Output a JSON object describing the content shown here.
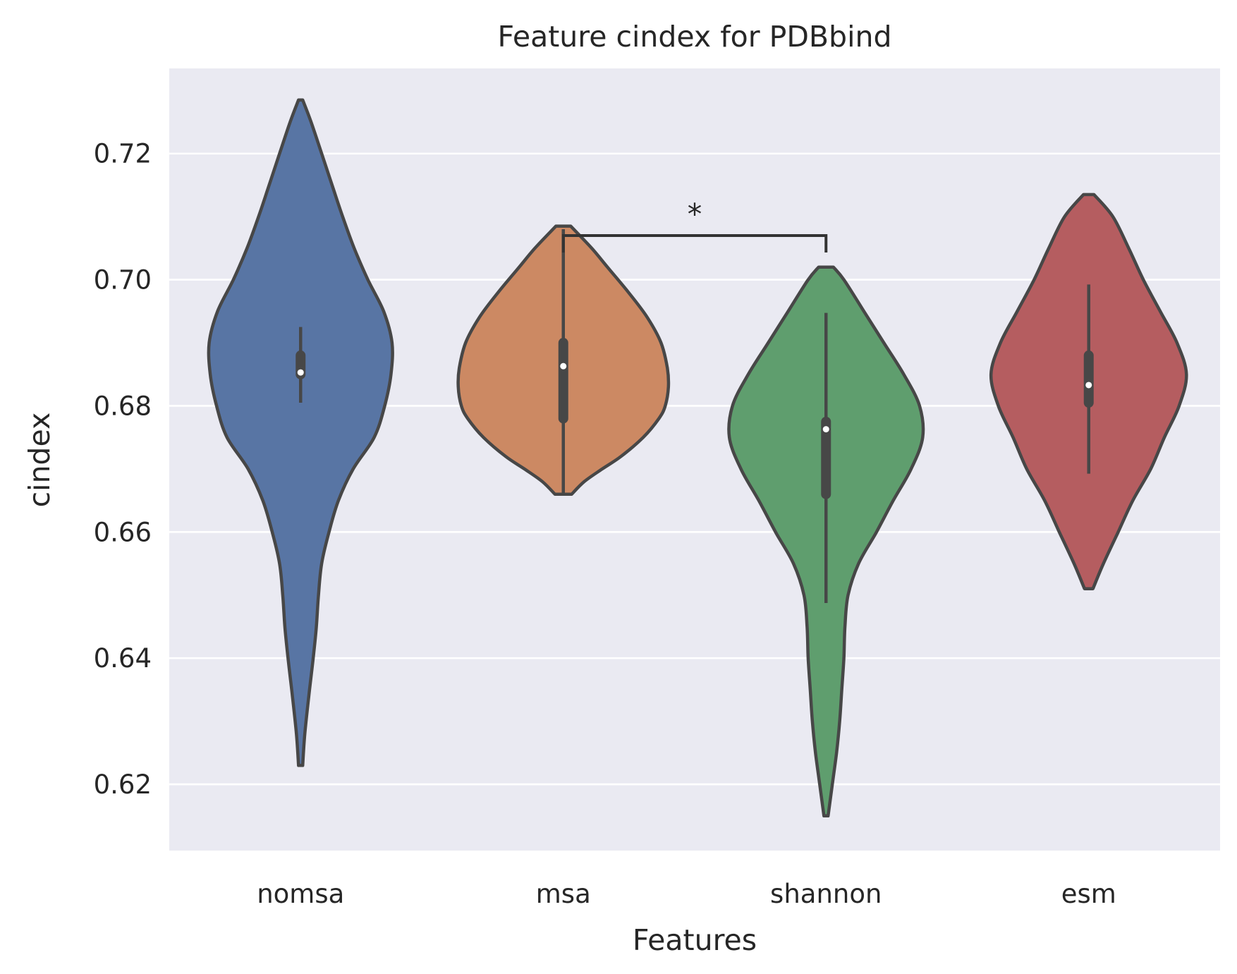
{
  "chart_data": {
    "type": "violin",
    "title": "Feature cindex for PDBbind",
    "xlabel": "Features",
    "ylabel": "cindex",
    "ylim": [
      0.6095,
      0.7335
    ],
    "yticks": [
      0.62,
      0.64,
      0.66,
      0.68,
      0.7,
      0.72
    ],
    "ytick_labels": [
      "0.62",
      "0.64",
      "0.66",
      "0.68",
      "0.70",
      "0.72"
    ],
    "grid": true,
    "categories": [
      "nomsa",
      "msa",
      "shannon",
      "esm"
    ],
    "colors": [
      "#5875a4",
      "#cc8963",
      "#5f9e6e",
      "#b55d60"
    ],
    "violins": [
      {
        "name": "nomsa",
        "min": 0.623,
        "max": 0.7285,
        "median": 0.6853,
        "q1": 0.685,
        "q3": 0.688,
        "profile": [
          [
            0.623,
            0.02
          ],
          [
            0.628,
            0.04
          ],
          [
            0.635,
            0.085
          ],
          [
            0.64,
            0.12
          ],
          [
            0.645,
            0.15
          ],
          [
            0.65,
            0.17
          ],
          [
            0.655,
            0.2
          ],
          [
            0.66,
            0.27
          ],
          [
            0.665,
            0.36
          ],
          [
            0.67,
            0.5
          ],
          [
            0.675,
            0.7
          ],
          [
            0.68,
            0.8
          ],
          [
            0.685,
            0.86
          ],
          [
            0.69,
            0.87
          ],
          [
            0.695,
            0.79
          ],
          [
            0.7,
            0.64
          ],
          [
            0.705,
            0.51
          ],
          [
            0.71,
            0.4
          ],
          [
            0.715,
            0.3
          ],
          [
            0.72,
            0.2
          ],
          [
            0.725,
            0.1
          ],
          [
            0.7285,
            0.02
          ]
        ]
      },
      {
        "name": "msa",
        "min": 0.666,
        "max": 0.7085,
        "median": 0.6863,
        "q1": 0.678,
        "q3": 0.69,
        "profile": [
          [
            0.666,
            0.08
          ],
          [
            0.668,
            0.2
          ],
          [
            0.67,
            0.37
          ],
          [
            0.672,
            0.55
          ],
          [
            0.675,
            0.76
          ],
          [
            0.678,
            0.91
          ],
          [
            0.68,
            0.97
          ],
          [
            0.683,
            1.0
          ],
          [
            0.686,
            0.99
          ],
          [
            0.69,
            0.93
          ],
          [
            0.694,
            0.8
          ],
          [
            0.698,
            0.62
          ],
          [
            0.702,
            0.42
          ],
          [
            0.705,
            0.27
          ],
          [
            0.7085,
            0.07
          ]
        ]
      },
      {
        "name": "shannon",
        "min": 0.615,
        "max": 0.702,
        "median": 0.6763,
        "q1": 0.666,
        "q3": 0.6775,
        "profile": [
          [
            0.615,
            0.02
          ],
          [
            0.62,
            0.06
          ],
          [
            0.625,
            0.1
          ],
          [
            0.63,
            0.13
          ],
          [
            0.635,
            0.15
          ],
          [
            0.64,
            0.17
          ],
          [
            0.645,
            0.18
          ],
          [
            0.65,
            0.21
          ],
          [
            0.655,
            0.31
          ],
          [
            0.66,
            0.48
          ],
          [
            0.665,
            0.64
          ],
          [
            0.67,
            0.81
          ],
          [
            0.675,
            0.92
          ],
          [
            0.68,
            0.89
          ],
          [
            0.685,
            0.74
          ],
          [
            0.69,
            0.55
          ],
          [
            0.695,
            0.36
          ],
          [
            0.7,
            0.17
          ],
          [
            0.702,
            0.07
          ]
        ]
      },
      {
        "name": "esm",
        "min": 0.651,
        "max": 0.7135,
        "median": 0.6833,
        "q1": 0.6805,
        "q3": 0.688,
        "profile": [
          [
            0.651,
            0.04
          ],
          [
            0.655,
            0.14
          ],
          [
            0.66,
            0.28
          ],
          [
            0.665,
            0.42
          ],
          [
            0.67,
            0.59
          ],
          [
            0.675,
            0.72
          ],
          [
            0.68,
            0.86
          ],
          [
            0.685,
            0.93
          ],
          [
            0.69,
            0.84
          ],
          [
            0.695,
            0.68
          ],
          [
            0.7,
            0.52
          ],
          [
            0.705,
            0.38
          ],
          [
            0.71,
            0.23
          ],
          [
            0.7135,
            0.05
          ]
        ]
      }
    ],
    "annotation": {
      "from": "msa",
      "to": "shannon",
      "y": 0.707,
      "text": "*"
    }
  }
}
